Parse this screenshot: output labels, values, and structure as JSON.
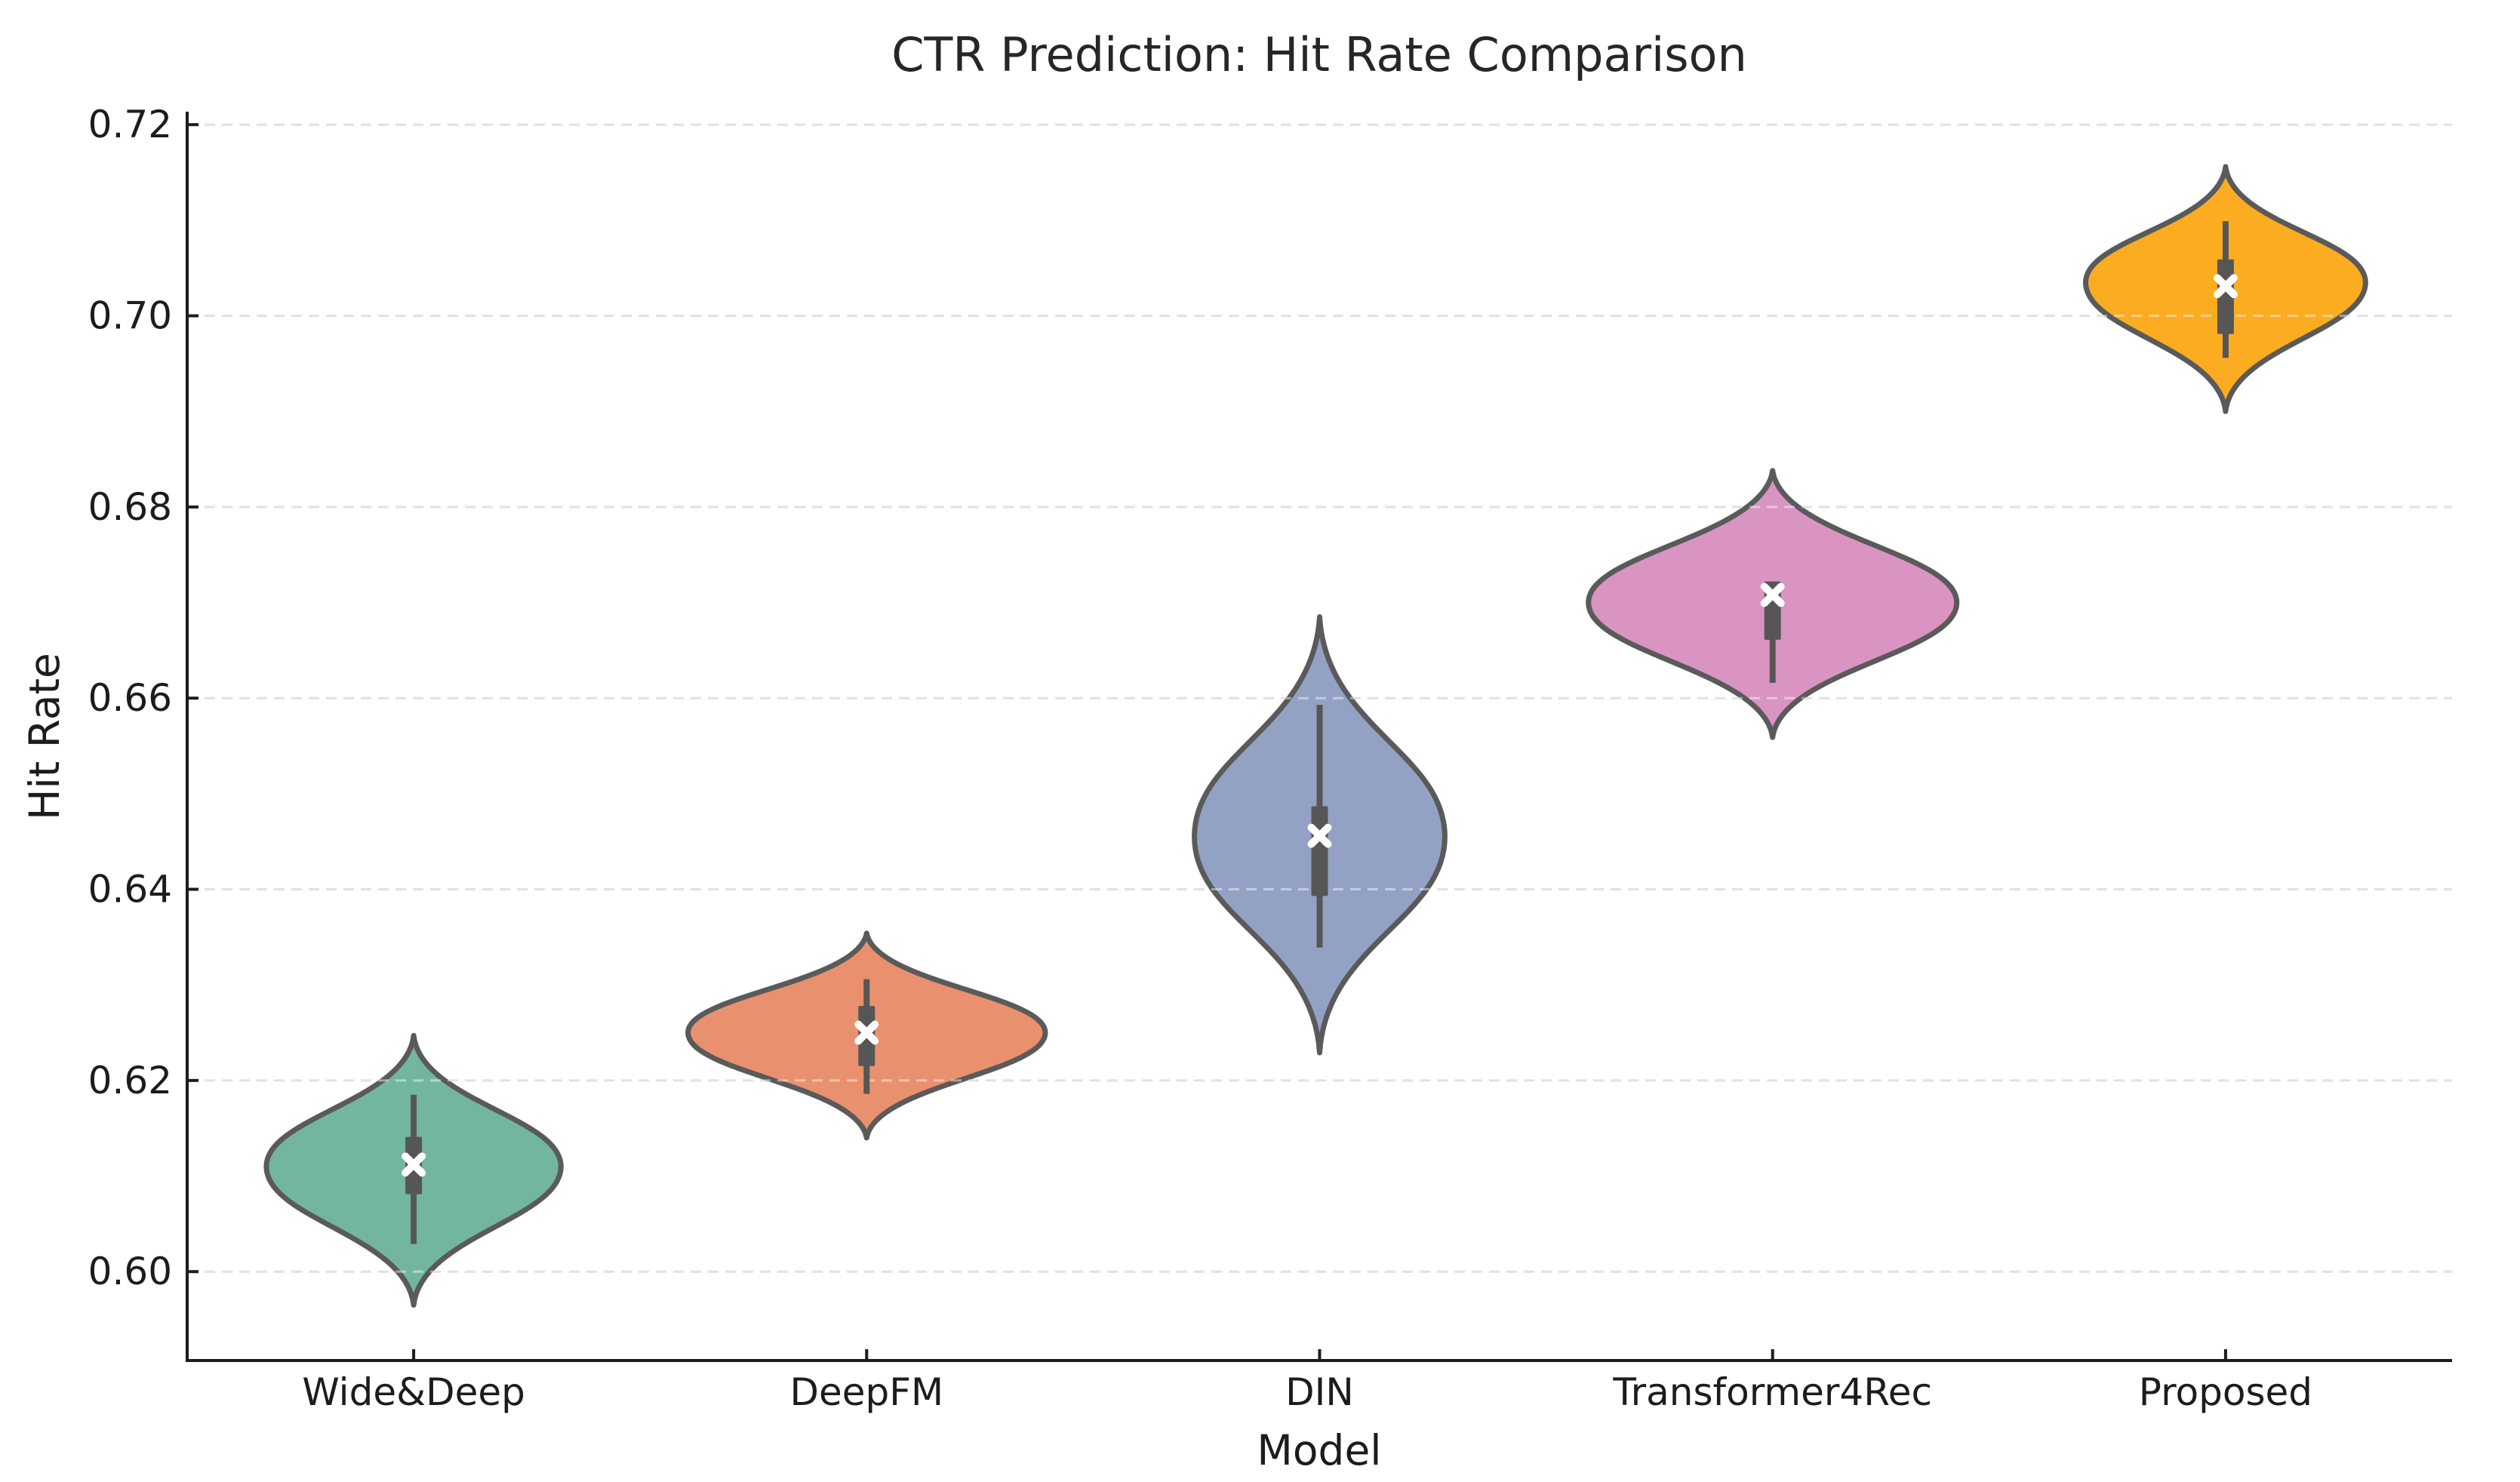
{
  "title": "CTR Prediction: Hit Rate Comparison",
  "xlabel": "Model",
  "ylabel": "Hit Rate",
  "chart_data": {
    "type": "violin",
    "title": "CTR Prediction: Hit Rate Comparison",
    "xlabel": "Model",
    "ylabel": "Hit Rate",
    "categories": [
      "Wide&Deep",
      "DeepFM",
      "DIN",
      "Transformer4Rec",
      "Proposed"
    ],
    "ylim": [
      0.5907,
      0.7212
    ],
    "yticks": [
      0.6,
      0.62,
      0.64,
      0.66,
      0.68,
      0.7,
      0.72
    ],
    "ytick_labels": [
      "0.60",
      "0.62",
      "0.64",
      "0.66",
      "0.68",
      "0.70",
      "0.72"
    ],
    "grid": {
      "axis": "y",
      "style": "dashed",
      "color": "#cbcbcb"
    },
    "legend": "none",
    "series": [
      {
        "model": "Wide&Deep",
        "fill": "#73b69e",
        "kde_min": 0.5965,
        "whisker_low": 0.6029,
        "q1": 0.6081,
        "mean": 0.6112,
        "q3": 0.6141,
        "whisker_high": 0.6185,
        "kde_max": 0.6247,
        "peak": 0.611,
        "rel_width": 0.8
      },
      {
        "model": "DeepFM",
        "fill": "#e9916e",
        "kde_min": 0.614,
        "whisker_low": 0.6186,
        "q1": 0.6215,
        "mean": 0.625,
        "q3": 0.6278,
        "whisker_high": 0.6306,
        "kde_max": 0.6354,
        "peak": 0.625,
        "rel_width": 0.97
      },
      {
        "model": "DIN",
        "fill": "#93a2c4",
        "kde_min": 0.6229,
        "whisker_low": 0.6339,
        "q1": 0.6393,
        "mean": 0.6456,
        "q3": 0.6487,
        "whisker_high": 0.6593,
        "kde_max": 0.6685,
        "peak": 0.6455,
        "rel_width": 0.68
      },
      {
        "model": "Transformer4Rec",
        "fill": "#d994c1",
        "kde_min": 0.6559,
        "whisker_low": 0.6616,
        "q1": 0.6661,
        "mean": 0.6708,
        "q3": 0.6722,
        "whisker_high": 0.6722,
        "kde_max": 0.6838,
        "peak": 0.67,
        "rel_width": 1.0
      },
      {
        "model": "Proposed",
        "fill": "#fcac20",
        "kde_min": 0.69,
        "whisker_low": 0.6956,
        "q1": 0.6981,
        "mean": 0.7031,
        "q3": 0.7059,
        "whisker_high": 0.7099,
        "kde_max": 0.7156,
        "peak": 0.7035,
        "rel_width": 0.76
      }
    ],
    "style": {
      "edge": "#5a5a5a",
      "box": "#565656",
      "whisker": "#565656",
      "mean_marker": "#ffffff",
      "spine": "#1c1c1c",
      "tick": "#1c1c1c",
      "grid_color": "#cbcbcb",
      "title_color": "#262626",
      "background": "#ffffff"
    }
  }
}
